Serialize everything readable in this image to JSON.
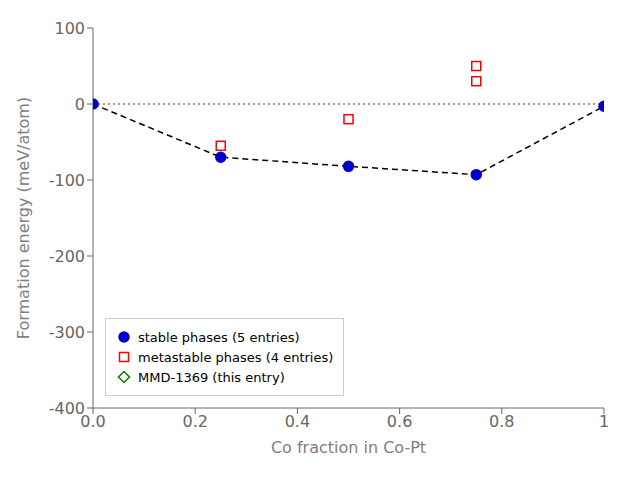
{
  "chart_data": {
    "type": "scatter",
    "xlabel": "Co fraction in Co-Pt",
    "ylabel": "Formation energy (meV/atom)",
    "xlim": [
      0.0,
      1.0
    ],
    "ylim": [
      -400,
      100
    ],
    "xticks": [
      {
        "value": 0.0,
        "label": "0.0"
      },
      0.2,
      0.4,
      0.6,
      0.8,
      1.0
    ],
    "yticks": [
      -400,
      -300,
      -200,
      -100,
      0,
      100
    ],
    "grid": false,
    "legend": "lower left",
    "series": [
      {
        "type": "line",
        "x": [
          0.0,
          1.0
        ],
        "values": [
          0.0,
          0.0
        ],
        "color": "gray",
        "line_style": "dotted"
      },
      {
        "type": "line",
        "x": [
          0.0,
          0.25,
          0.5,
          0.75,
          1.0
        ],
        "values": [
          0.0,
          -70.0,
          -82.0,
          -93.0,
          -3.0
        ],
        "color": "black",
        "line_style": "dashed"
      },
      {
        "type": "scatter",
        "name": "stable phases (5 entries)",
        "x": [
          0.0,
          0.25,
          0.5,
          0.75,
          1.0
        ],
        "values": [
          0.0,
          -70.0,
          -82.0,
          -93.0,
          -3.0
        ],
        "color": "#0000cc",
        "marker": "circle"
      },
      {
        "type": "scatter",
        "name": "metastable phases (4 entries)",
        "x": [
          0.25,
          0.5,
          0.75,
          0.75
        ],
        "values": [
          -55.0,
          -20.0,
          30.0,
          50.0
        ],
        "color": "red",
        "marker": "open_square"
      },
      {
        "type": "scatter",
        "name": "MMD-1369 (this entry)",
        "x": [],
        "values": [],
        "color": "green",
        "marker": "open_diamond"
      }
    ]
  }
}
